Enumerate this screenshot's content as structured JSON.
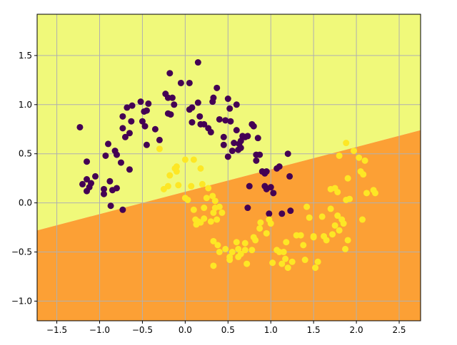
{
  "chart_data": {
    "type": "scatter",
    "title": "",
    "xlabel": "",
    "ylabel": "",
    "xlim": [
      -1.73,
      2.75
    ],
    "ylim": [
      -1.2,
      1.92
    ],
    "xticks": [
      -1.5,
      -1.0,
      -0.5,
      0.0,
      0.5,
      1.0,
      1.5,
      2.0,
      2.5
    ],
    "yticks": [
      -1.0,
      -0.5,
      0.0,
      0.5,
      1.0,
      1.5
    ],
    "xtick_labels": [
      "−1.5",
      "−1.0",
      "−0.5",
      "0.0",
      "0.5",
      "1.0",
      "1.5",
      "2.0",
      "2.5"
    ],
    "ytick_labels": [
      "−1.0",
      "−0.5",
      "0.0",
      "0.5",
      "1.0",
      "1.5"
    ],
    "grid": true,
    "decision_boundary": {
      "x": [
        -1.73,
        2.75
      ],
      "y": [
        -0.28,
        0.74
      ]
    },
    "regions": {
      "above_color": "#f0f97a",
      "below_color": "#fca035"
    },
    "grid_color": "#b0b0b0",
    "series": [
      {
        "color": "#440154",
        "points": [
          [
            -1.23,
            0.77
          ],
          [
            -1.15,
            0.42
          ],
          [
            -1.2,
            0.19
          ],
          [
            -1.15,
            0.24
          ],
          [
            -1.12,
            0.16
          ],
          [
            -1.1,
            0.2
          ],
          [
            -1.15,
            0.12
          ],
          [
            -1.05,
            0.27
          ],
          [
            -0.95,
            0.14
          ],
          [
            -0.95,
            0.09
          ],
          [
            -0.93,
            0.48
          ],
          [
            -0.9,
            0.6
          ],
          [
            -0.88,
            0.22
          ],
          [
            -0.85,
            0.13
          ],
          [
            -0.82,
            0.53
          ],
          [
            -0.8,
            0.15
          ],
          [
            -0.8,
            0.49
          ],
          [
            -0.75,
            0.41
          ],
          [
            -0.73,
            0.88
          ],
          [
            -0.73,
            0.76
          ],
          [
            -0.7,
            0.67
          ],
          [
            -0.68,
            0.97
          ],
          [
            -0.65,
            0.71
          ],
          [
            -0.63,
            0.83
          ],
          [
            -0.62,
            0.99
          ],
          [
            -0.65,
            0.34
          ],
          [
            -0.73,
            -0.07
          ],
          [
            -0.87,
            -0.03
          ],
          [
            -0.52,
            1.03
          ],
          [
            -0.5,
            0.83
          ],
          [
            -0.48,
            0.93
          ],
          [
            -0.47,
            0.78
          ],
          [
            -0.45,
            0.94
          ],
          [
            -0.43,
            1.01
          ],
          [
            -0.45,
            0.59
          ],
          [
            -0.35,
            0.75
          ],
          [
            -0.3,
            0.64
          ],
          [
            -0.23,
            1.11
          ],
          [
            -0.2,
            1.07
          ],
          [
            -0.2,
            0.91
          ],
          [
            -0.18,
            1.32
          ],
          [
            -0.17,
            0.9
          ],
          [
            -0.15,
            1.07
          ],
          [
            -0.13,
            1.0
          ],
          [
            -0.05,
            1.22
          ],
          [
            0.05,
            1.22
          ],
          [
            0.05,
            0.95
          ],
          [
            0.08,
            0.97
          ],
          [
            0.08,
            0.82
          ],
          [
            0.15,
            1.43
          ],
          [
            0.15,
            1.02
          ],
          [
            0.17,
            0.88
          ],
          [
            0.18,
            0.8
          ],
          [
            0.22,
            0.8
          ],
          [
            0.27,
            0.76
          ],
          [
            0.3,
            0.72
          ],
          [
            0.32,
            1.03
          ],
          [
            0.33,
            1.07
          ],
          [
            0.37,
            1.17
          ],
          [
            0.4,
            0.85
          ],
          [
            0.45,
            0.59
          ],
          [
            0.45,
            0.67
          ],
          [
            0.47,
            0.84
          ],
          [
            0.5,
            1.06
          ],
          [
            0.5,
            0.47
          ],
          [
            0.52,
            0.96
          ],
          [
            0.53,
            0.83
          ],
          [
            0.55,
            0.53
          ],
          [
            0.57,
            0.61
          ],
          [
            0.6,
            0.74
          ],
          [
            0.62,
            0.54
          ],
          [
            0.63,
            0.6
          ],
          [
            0.65,
            0.63
          ],
          [
            0.65,
            0.56
          ],
          [
            0.67,
            0.68
          ],
          [
            0.7,
            0.67
          ],
          [
            0.73,
            0.68
          ],
          [
            0.78,
            0.8
          ],
          [
            0.8,
            0.78
          ],
          [
            0.85,
            0.66
          ],
          [
            0.6,
            1.0
          ],
          [
            0.83,
            0.49
          ],
          [
            0.87,
            0.49
          ],
          [
            0.83,
            0.43
          ],
          [
            0.9,
            0.32
          ],
          [
            0.93,
            0.3
          ],
          [
            0.95,
            0.32
          ],
          [
            1.07,
            0.35
          ],
          [
            1.1,
            0.37
          ],
          [
            1.2,
            0.5
          ],
          [
            1.22,
            0.27
          ],
          [
            0.93,
            0.17
          ],
          [
            0.95,
            0.14
          ],
          [
            1.0,
            0.16
          ],
          [
            1.03,
            0.1
          ],
          [
            0.75,
            0.17
          ],
          [
            0.73,
            -0.05
          ],
          [
            0.98,
            -0.11
          ],
          [
            1.13,
            -0.11
          ],
          [
            1.23,
            -0.08
          ]
        ]
      },
      {
        "color": "#fde725",
        "points": [
          [
            -0.3,
            0.55
          ],
          [
            -0.25,
            0.14
          ],
          [
            -0.2,
            0.17
          ],
          [
            -0.18,
            0.28
          ],
          [
            -0.12,
            0.35
          ],
          [
            -0.1,
            0.37
          ],
          [
            -0.1,
            0.32
          ],
          [
            -0.08,
            0.18
          ],
          [
            0.0,
            0.44
          ],
          [
            0.0,
            0.05
          ],
          [
            0.03,
            0.03
          ],
          [
            0.07,
            0.17
          ],
          [
            0.1,
            0.44
          ],
          [
            0.1,
            -0.07
          ],
          [
            0.12,
            -0.17
          ],
          [
            0.13,
            -0.22
          ],
          [
            0.15,
            -0.19
          ],
          [
            0.18,
            -0.2
          ],
          [
            0.18,
            0.35
          ],
          [
            0.2,
            0.19
          ],
          [
            0.22,
            -0.05
          ],
          [
            0.22,
            -0.16
          ],
          [
            0.25,
            0.05
          ],
          [
            0.27,
            0.15
          ],
          [
            0.3,
            -0.19
          ],
          [
            0.32,
            0.07
          ],
          [
            0.33,
            -0.1
          ],
          [
            0.35,
            -0.05
          ],
          [
            0.35,
            0.02
          ],
          [
            0.37,
            -0.17
          ],
          [
            0.4,
            -0.04
          ],
          [
            0.43,
            -0.1
          ],
          [
            0.33,
            -0.39
          ],
          [
            0.33,
            -0.64
          ],
          [
            0.38,
            -0.43
          ],
          [
            0.4,
            -0.5
          ],
          [
            0.47,
            -0.47
          ],
          [
            0.52,
            -0.55
          ],
          [
            0.52,
            -0.58
          ],
          [
            0.55,
            -0.5
          ],
          [
            0.6,
            -0.4
          ],
          [
            0.62,
            -0.47
          ],
          [
            0.62,
            -0.55
          ],
          [
            0.65,
            -0.52
          ],
          [
            0.7,
            -0.41
          ],
          [
            0.7,
            -0.48
          ],
          [
            0.72,
            -0.62
          ],
          [
            0.78,
            -0.48
          ],
          [
            0.8,
            -0.35
          ],
          [
            0.82,
            -0.38
          ],
          [
            0.87,
            -0.26
          ],
          [
            0.88,
            -0.2
          ],
          [
            0.95,
            -0.31
          ],
          [
            0.98,
            -0.17
          ],
          [
            1.0,
            -0.21
          ],
          [
            1.02,
            -0.61
          ],
          [
            1.07,
            -0.48
          ],
          [
            1.1,
            -0.5
          ],
          [
            1.13,
            -0.62
          ],
          [
            1.15,
            -0.5
          ],
          [
            1.17,
            -0.57
          ],
          [
            1.18,
            -0.4
          ],
          [
            1.2,
            -0.66
          ],
          [
            1.25,
            -0.6
          ],
          [
            1.3,
            -0.33
          ],
          [
            1.35,
            -0.33
          ],
          [
            1.38,
            -0.43
          ],
          [
            1.4,
            -0.58
          ],
          [
            1.42,
            -0.04
          ],
          [
            1.45,
            -0.15
          ],
          [
            1.5,
            -0.34
          ],
          [
            1.5,
            -0.35
          ],
          [
            1.52,
            -0.66
          ],
          [
            1.55,
            -0.6
          ],
          [
            1.6,
            -0.14
          ],
          [
            1.62,
            -0.34
          ],
          [
            1.65,
            -0.38
          ],
          [
            1.7,
            -0.06
          ],
          [
            1.72,
            -0.32
          ],
          [
            1.75,
            -0.23
          ],
          [
            1.78,
            -0.13
          ],
          [
            1.8,
            -0.28
          ],
          [
            1.83,
            -0.17
          ],
          [
            1.85,
            -0.21
          ],
          [
            1.87,
            -0.47
          ],
          [
            1.9,
            -0.38
          ],
          [
            1.92,
            0.04
          ],
          [
            1.7,
            0.14
          ],
          [
            1.75,
            0.15
          ],
          [
            1.78,
            0.11
          ],
          [
            1.8,
            0.48
          ],
          [
            1.88,
            0.03
          ],
          [
            1.9,
            0.25
          ],
          [
            1.88,
            0.61
          ],
          [
            1.97,
            0.53
          ],
          [
            2.03,
            0.46
          ],
          [
            2.05,
            0.32
          ],
          [
            2.07,
            -0.17
          ],
          [
            2.08,
            0.29
          ],
          [
            2.1,
            0.43
          ],
          [
            2.12,
            0.1
          ],
          [
            2.2,
            0.13
          ],
          [
            2.22,
            0.1
          ]
        ]
      }
    ]
  }
}
